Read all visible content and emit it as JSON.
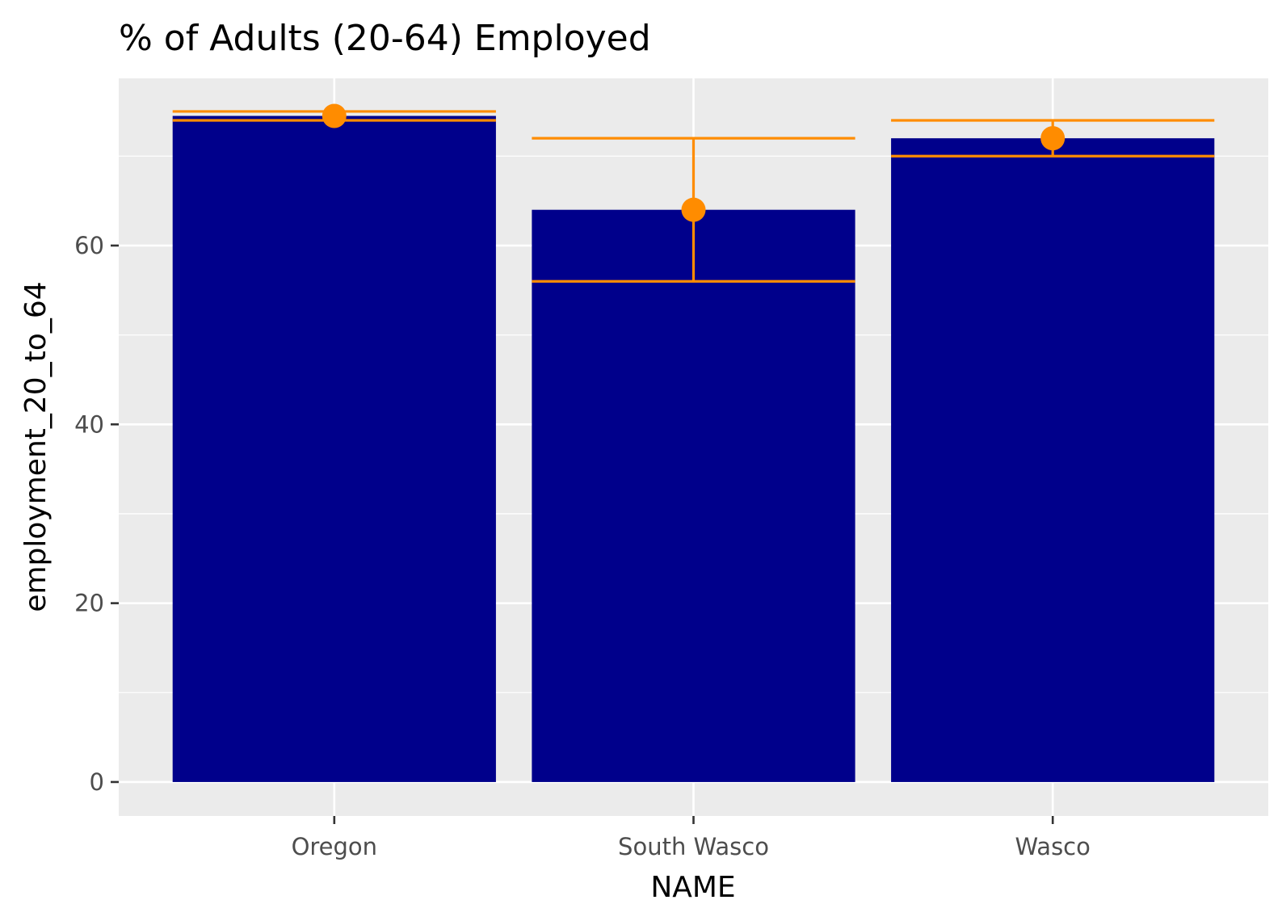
{
  "chart_data": {
    "type": "bar",
    "title": "% of Adults (20-64) Employed",
    "xlabel": "NAME",
    "ylabel": "employment_20_to_64",
    "categories": [
      "Oregon",
      "South Wasco",
      "Wasco"
    ],
    "values": [
      74.5,
      64.0,
      72.0
    ],
    "error_low": [
      74.0,
      56.0,
      70.0
    ],
    "error_high": [
      75.0,
      72.0,
      74.0
    ],
    "y_ticks": [
      0,
      20,
      40,
      60
    ],
    "ylim": [
      -3.8,
      78.7
    ],
    "grid": true,
    "colors": {
      "bar": "#00008b",
      "error": "#ff8c00",
      "point": "#ff8c00",
      "panel": "#ebebeb"
    }
  }
}
